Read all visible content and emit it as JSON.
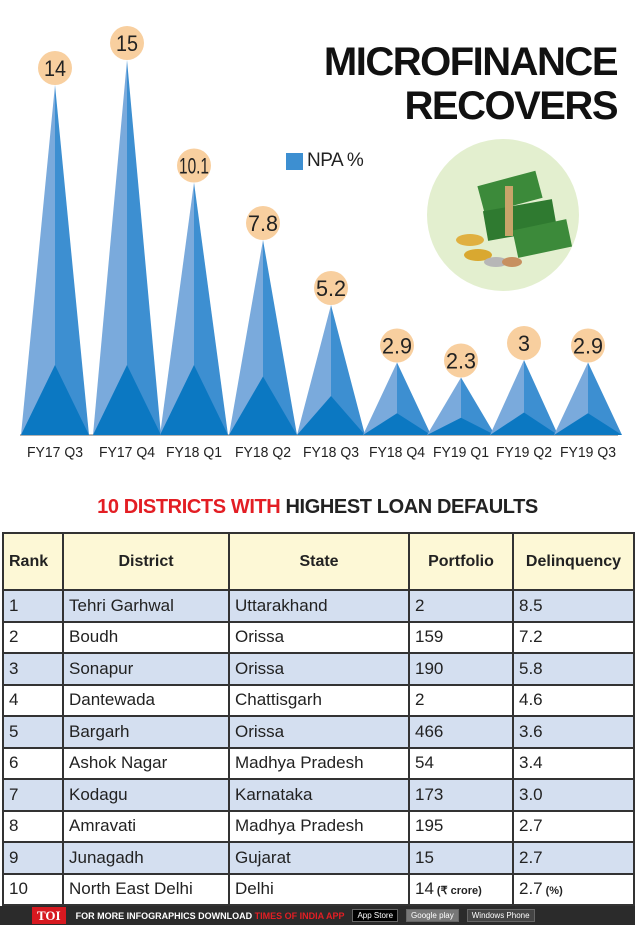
{
  "title_line1": "MICROFINANCE",
  "title_line2": "RECOVERS",
  "chart_data": {
    "type": "bar",
    "categories": [
      "FY17 Q3",
      "FY17 Q4",
      "FY18 Q1",
      "FY18 Q2",
      "FY18 Q3",
      "FY18 Q4",
      "FY19 Q1",
      "FY19 Q2",
      "FY19 Q3"
    ],
    "series": [
      {
        "name": "NPA %",
        "values": [
          14,
          15,
          10.1,
          7.8,
          5.2,
          2.9,
          2.3,
          3,
          2.9
        ]
      }
    ],
    "value_labels": [
      "14",
      "15",
      "10.1",
      "7.8",
      "5.2",
      "2.9",
      "2.3",
      "3",
      "2.9"
    ],
    "legend": "top-center",
    "colors": {
      "light": "#7aaadc",
      "mid": "#3d8fd1",
      "dark": "#0b78c2",
      "bubble": "#f8cf9f"
    }
  },
  "table_title_red": "10 DISTRICTS WITH",
  "table_title_black": "HIGHEST LOAN DEFAULTS",
  "table": {
    "headers": [
      "Rank",
      "District",
      "State",
      "Portfolio",
      "Delinquency"
    ],
    "rows": [
      [
        "1",
        "Tehri Garhwal",
        "Uttarakhand",
        "2",
        "8.5"
      ],
      [
        "2",
        "Boudh",
        "Orissa",
        "159",
        "7.2"
      ],
      [
        "3",
        "Sonapur",
        "Orissa",
        "190",
        "5.8"
      ],
      [
        "4",
        "Dantewada",
        "Chattisgarh",
        "2",
        "4.6"
      ],
      [
        "5",
        "Bargarh",
        "Orissa",
        "466",
        "3.6"
      ],
      [
        "6",
        "Ashok Nagar",
        "Madhya Pradesh",
        "54",
        "3.4"
      ],
      [
        "7",
        "Kodagu",
        "Karnataka",
        "173",
        "3.0"
      ],
      [
        "8",
        "Amravati",
        "Madhya Pradesh",
        "195",
        "2.7"
      ],
      [
        "9",
        "Junagadh",
        "Gujarat",
        "15",
        "2.7"
      ],
      [
        "10",
        "North East Delhi",
        "Delhi",
        "14",
        "2.7"
      ]
    ],
    "portfolio_unit": "(₹ crore)",
    "delinquency_unit": "(%)"
  },
  "footer": {
    "logo": "TOI",
    "text": "FOR MORE  INFOGRAPHICS DOWNLOAD",
    "text_red": "TIMES OF INDIA  APP",
    "app_store": "App Store",
    "google_play": "Google play",
    "windows": "Windows Phone"
  }
}
